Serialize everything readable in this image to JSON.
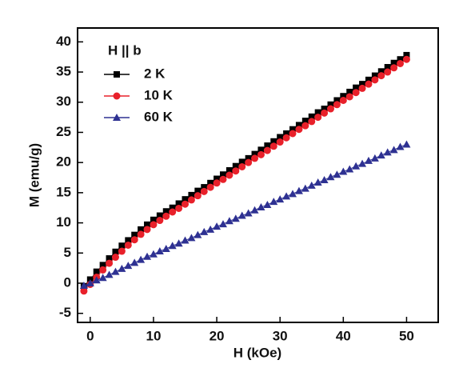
{
  "chart_data": {
    "type": "scatter",
    "x_label": "H (kOe)",
    "y_label": "M (emu/g)",
    "legend_title": "H || b",
    "xlim": [
      -2,
      55
    ],
    "ylim": [
      -6.5,
      42.3
    ],
    "xticks": [
      0,
      10,
      20,
      30,
      40,
      50
    ],
    "yticks": [
      -5,
      0,
      5,
      10,
      15,
      20,
      25,
      30,
      35,
      40
    ],
    "x": [
      -1,
      0,
      1,
      2,
      3,
      4,
      5,
      6,
      7,
      8,
      9,
      10,
      11,
      12,
      13,
      14,
      15,
      16,
      17,
      18,
      19,
      20,
      21,
      22,
      23,
      24,
      25,
      26,
      27,
      28,
      29,
      30,
      31,
      32,
      33,
      34,
      35,
      36,
      37,
      38,
      39,
      40,
      41,
      42,
      43,
      44,
      45,
      46,
      47,
      48,
      49,
      50
    ],
    "series": [
      {
        "name": "2 K",
        "color": "#000000",
        "marker": "square",
        "values": [
          -0.5,
          0.6,
          1.9,
          3.0,
          4.1,
          5.2,
          6.2,
          7.1,
          8.0,
          8.9,
          9.7,
          10.5,
          11.2,
          11.9,
          12.5,
          13.2,
          13.9,
          14.6,
          15.3,
          15.9,
          16.6,
          17.3,
          18.0,
          18.7,
          19.4,
          20.1,
          20.7,
          21.4,
          22.1,
          22.8,
          23.5,
          24.2,
          24.8,
          25.5,
          26.2,
          26.9,
          27.6,
          28.3,
          28.9,
          29.6,
          30.3,
          31.0,
          31.7,
          32.4,
          33.0,
          33.7,
          34.4,
          35.1,
          35.8,
          36.5,
          37.1,
          37.8
        ]
      },
      {
        "name": "10 K",
        "color": "#e8202a",
        "marker": "circle",
        "values": [
          -1.3,
          -0.2,
          1.0,
          2.2,
          3.3,
          4.3,
          5.3,
          6.3,
          7.2,
          8.1,
          8.9,
          9.7,
          10.4,
          11.1,
          11.8,
          12.4,
          13.1,
          13.8,
          14.5,
          15.2,
          15.9,
          16.6,
          17.2,
          17.9,
          18.6,
          19.3,
          20.0,
          20.7,
          21.3,
          22.0,
          22.7,
          23.4,
          24.1,
          24.8,
          25.5,
          26.1,
          26.8,
          27.5,
          28.2,
          28.9,
          29.6,
          30.3,
          30.9,
          31.6,
          32.3,
          33.0,
          33.7,
          34.4,
          35.0,
          35.7,
          36.4,
          37.1
        ]
      },
      {
        "name": "60 K",
        "color": "#2e3192",
        "marker": "triangle",
        "values": [
          -0.4,
          0.0,
          0.5,
          0.9,
          1.4,
          1.9,
          2.4,
          2.9,
          3.4,
          3.9,
          4.4,
          4.8,
          5.3,
          5.7,
          6.2,
          6.6,
          7.1,
          7.5,
          8.0,
          8.5,
          8.9,
          9.4,
          9.8,
          10.3,
          10.7,
          11.2,
          11.6,
          12.1,
          12.6,
          13.0,
          13.5,
          13.9,
          14.4,
          14.8,
          15.3,
          15.7,
          16.2,
          16.7,
          17.1,
          17.6,
          18.0,
          18.5,
          18.9,
          19.4,
          19.8,
          20.3,
          20.7,
          21.2,
          21.7,
          22.1,
          22.6,
          23.0
        ]
      }
    ]
  }
}
